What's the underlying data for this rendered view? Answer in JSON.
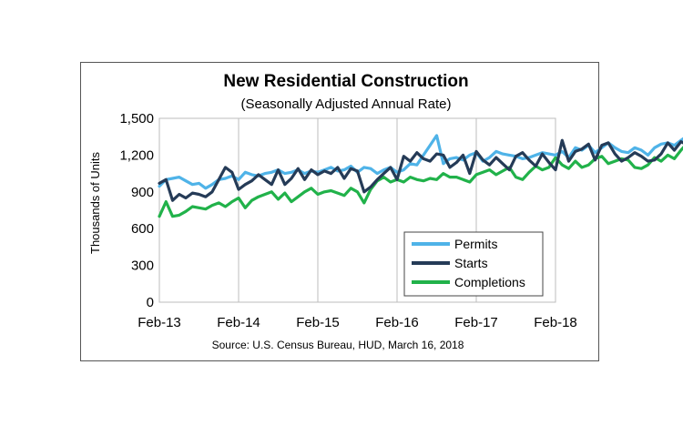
{
  "chart_data": {
    "type": "line",
    "title": "New Residential Construction",
    "subtitle": "(Seasonally Adjusted Annual Rate)",
    "ylabel": "Thousands of Units",
    "xlabel": "",
    "ylim": [
      0,
      1500
    ],
    "yticks": [
      "0",
      "300",
      "600",
      "900",
      "1,200",
      "1,500"
    ],
    "ytick_values": [
      0,
      300,
      600,
      900,
      1200,
      1500
    ],
    "xticks": [
      "Feb-13",
      "Feb-14",
      "Feb-15",
      "Feb-16",
      "Feb-17",
      "Feb-18"
    ],
    "grid": "vertical",
    "legend_position": "bottom-right",
    "source": "Source:  U.S. Census Bureau, HUD, March 16, 2018",
    "series": [
      {
        "name": "Permits",
        "color": "#4fb3e8",
        "values": [
          946,
          1000,
          1010,
          1020,
          990,
          960,
          970,
          930,
          960,
          1000,
          1010,
          1030,
          1000,
          1060,
          1040,
          1030,
          1050,
          1060,
          1080,
          1050,
          1060,
          1080,
          1050,
          1070,
          1060,
          1080,
          1100,
          1070,
          1080,
          1110,
          1060,
          1100,
          1090,
          1050,
          1080,
          1100,
          1060,
          1080,
          1130,
          1120,
          1200,
          1280,
          1360,
          1130,
          1170,
          1180,
          1160,
          1200,
          1220,
          1150,
          1180,
          1230,
          1210,
          1200,
          1190,
          1170,
          1180,
          1200,
          1220,
          1210,
          1200,
          1230,
          1180,
          1260,
          1240,
          1280,
          1220,
          1260,
          1300,
          1260,
          1230,
          1220,
          1260,
          1240,
          1200,
          1260,
          1290,
          1300,
          1280,
          1320,
          1360,
          1298
        ]
      },
      {
        "name": "Starts",
        "color": "#253b57",
        "values": [
          970,
          1000,
          830,
          880,
          850,
          890,
          880,
          860,
          900,
          1000,
          1100,
          1060,
          920,
          960,
          990,
          1040,
          1000,
          960,
          1080,
          960,
          1010,
          1090,
          1000,
          1080,
          1040,
          1070,
          1050,
          1100,
          1010,
          1090,
          1070,
          900,
          940,
          1000,
          1050,
          1100,
          1000,
          1190,
          1150,
          1220,
          1170,
          1150,
          1210,
          1200,
          1100,
          1140,
          1200,
          1050,
          1230,
          1160,
          1120,
          1180,
          1130,
          1080,
          1190,
          1220,
          1160,
          1110,
          1210,
          1140,
          1080,
          1320,
          1150,
          1230,
          1250,
          1290,
          1160,
          1280,
          1300,
          1210,
          1150,
          1180,
          1220,
          1190,
          1150,
          1160,
          1210,
          1300,
          1240,
          1310,
          1280,
          1236
        ]
      },
      {
        "name": "Completions",
        "color": "#21b24a",
        "values": [
          700,
          820,
          700,
          710,
          740,
          780,
          770,
          760,
          790,
          810,
          780,
          820,
          850,
          770,
          830,
          860,
          880,
          900,
          840,
          890,
          820,
          860,
          900,
          930,
          880,
          900,
          910,
          890,
          870,
          930,
          900,
          810,
          920,
          990,
          1020,
          980,
          1000,
          980,
          1020,
          1000,
          990,
          1010,
          1000,
          1050,
          1020,
          1020,
          1000,
          980,
          1040,
          1060,
          1080,
          1040,
          1070,
          1100,
          1020,
          1000,
          1060,
          1110,
          1080,
          1100,
          1180,
          1120,
          1090,
          1150,
          1100,
          1120,
          1170,
          1190,
          1130,
          1150,
          1170,
          1160,
          1100,
          1090,
          1120,
          1180,
          1150,
          1200,
          1170,
          1240,
          1300,
          1250
        ]
      }
    ]
  }
}
